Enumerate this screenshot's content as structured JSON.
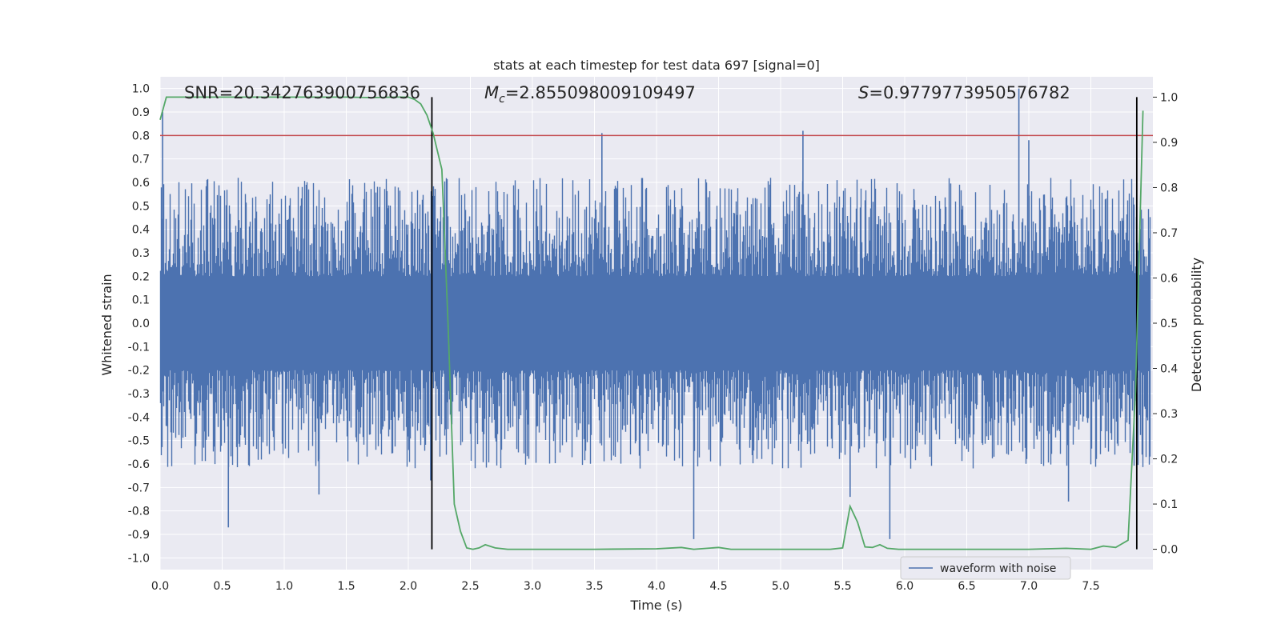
{
  "chart_data": {
    "type": "line",
    "title": "stats at each timestep for test data 697 [signal=0]",
    "xlabel": "Time (s)",
    "ylabel_left": "Whitened strain",
    "ylabel_right": "Detection probability",
    "xlim": [
      0.0,
      8.0
    ],
    "ylim_left": [
      -1.05,
      1.05
    ],
    "ylim_right": [
      -0.045,
      1.045
    ],
    "x_ticks": [
      "0.0",
      "0.5",
      "1.0",
      "1.5",
      "2.0",
      "2.5",
      "3.0",
      "3.5",
      "4.0",
      "4.5",
      "5.0",
      "5.5",
      "6.0",
      "6.5",
      "7.0",
      "7.5"
    ],
    "x_tick_values": [
      0.0,
      0.5,
      1.0,
      1.5,
      2.0,
      2.5,
      3.0,
      3.5,
      4.0,
      4.5,
      5.0,
      5.5,
      6.0,
      6.5,
      7.0,
      7.5
    ],
    "y_left_ticks": [
      "1.0",
      "0.9",
      "0.8",
      "0.7",
      "0.6",
      "0.5",
      "0.4",
      "0.3",
      "0.2",
      "0.1",
      "0.0",
      "-0.1",
      "-0.2",
      "-0.3",
      "-0.4",
      "-0.5",
      "-0.6",
      "-0.7",
      "-0.8",
      "-0.9",
      "-1.0"
    ],
    "y_left_tick_values": [
      1.0,
      0.9,
      0.8,
      0.7,
      0.6,
      0.5,
      0.4,
      0.3,
      0.2,
      0.1,
      0.0,
      -0.1,
      -0.2,
      -0.3,
      -0.4,
      -0.5,
      -0.6,
      -0.7,
      -0.8,
      -0.9,
      -1.0
    ],
    "y_right_ticks": [
      "1.0",
      "0.9",
      "0.8",
      "0.7",
      "0.6",
      "0.5",
      "0.4",
      "0.3",
      "0.2",
      "0.1",
      "0.0"
    ],
    "y_right_tick_values": [
      1.0,
      0.9,
      0.8,
      0.7,
      0.6,
      0.5,
      0.4,
      0.3,
      0.2,
      0.1,
      0.0
    ],
    "grid": true,
    "annotations": {
      "snr": "SNR=20.342763900756836",
      "mc_symbol": "M",
      "mc_sub": "c",
      "mc_value": "=2.855098009109497",
      "s_symbol": "S",
      "s_value": "=0.9779773950576782"
    },
    "threshold": {
      "y_left": 0.8,
      "color": "#c44e52"
    },
    "vertical_lines": [
      2.19,
      7.87
    ],
    "waveform": {
      "name": "waveform with noise",
      "color": "#4c72b0",
      "noise_amplitude": 0.42,
      "spikes": [
        {
          "x": 0.02,
          "y": 0.9
        },
        {
          "x": 0.55,
          "y": -0.87
        },
        {
          "x": 1.28,
          "y": -0.73
        },
        {
          "x": 2.18,
          "y": -0.67
        },
        {
          "x": 3.56,
          "y": 0.81
        },
        {
          "x": 4.3,
          "y": -0.92
        },
        {
          "x": 5.18,
          "y": 0.82
        },
        {
          "x": 5.56,
          "y": -0.74
        },
        {
          "x": 5.88,
          "y": -0.92
        },
        {
          "x": 6.92,
          "y": 1.0
        },
        {
          "x": 7.0,
          "y": 0.78
        },
        {
          "x": 7.32,
          "y": -0.76
        }
      ]
    },
    "probability": {
      "name": "Detection probability",
      "color": "#55a868",
      "x": [
        0.0,
        0.05,
        0.1,
        0.5,
        1.0,
        1.5,
        1.7,
        1.9,
        2.0,
        2.05,
        2.1,
        2.15,
        2.2,
        2.27,
        2.32,
        2.37,
        2.42,
        2.47,
        2.52,
        2.57,
        2.62,
        2.7,
        2.8,
        3.0,
        3.5,
        4.0,
        4.2,
        4.3,
        4.5,
        4.6,
        5.0,
        5.4,
        5.5,
        5.56,
        5.62,
        5.68,
        5.74,
        5.8,
        5.86,
        5.95,
        6.5,
        7.0,
        7.3,
        7.5,
        7.6,
        7.7,
        7.8,
        7.86,
        7.92
      ],
      "y": [
        0.95,
        1.0,
        1.0,
        1.0,
        1.0,
        1.0,
        0.999,
        1.0,
        1.0,
        0.995,
        0.985,
        0.96,
        0.92,
        0.84,
        0.5,
        0.1,
        0.04,
        0.003,
        0.0,
        0.003,
        0.01,
        0.003,
        0.0,
        0.0,
        0.0,
        0.001,
        0.004,
        0.0,
        0.004,
        0.0,
        0.0,
        0.0,
        0.003,
        0.095,
        0.06,
        0.005,
        0.004,
        0.01,
        0.002,
        0.0,
        0.0,
        0.0,
        0.002,
        0.0,
        0.007,
        0.004,
        0.02,
        0.35,
        0.97
      ]
    },
    "legend": {
      "placement": "lower-right",
      "label": "waveform with noise"
    }
  }
}
